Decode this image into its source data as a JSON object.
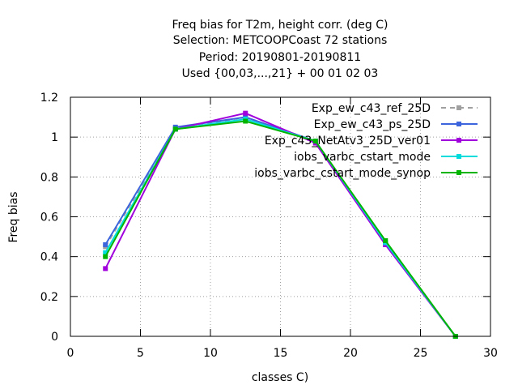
{
  "chart_data": {
    "type": "line",
    "title_lines": [
      "Freq bias  for T2m, height corr. (deg C)",
      "Selection: METCOOPCoast     72 stations",
      "Period: 20190801-20190811",
      "Used {00,03,...,21} + 00 01 02 03"
    ],
    "xlabel": "classes C)",
    "ylabel": "Freq bias",
    "xlim": [
      0,
      30
    ],
    "ylim": [
      0,
      1.2
    ],
    "xticks": [
      0,
      5,
      10,
      15,
      20,
      25,
      30
    ],
    "yticks": [
      0,
      0.2,
      0.4,
      0.6,
      0.8,
      1,
      1.2
    ],
    "xtick_labels": [
      "0",
      "5",
      "10",
      "15",
      "20",
      "25",
      "30"
    ],
    "ytick_labels": [
      "0",
      "0.2",
      "0.4",
      "0.6",
      "0.8",
      "1",
      "1.2"
    ],
    "grid": true,
    "legend_position": "top-right",
    "x": [
      2.5,
      7.5,
      12.5,
      17.5,
      22.5,
      27.5
    ],
    "series": [
      {
        "name": "Exp_ew_c43_ref_25D",
        "color": "#a0a0a0",
        "dashed": true,
        "values": [
          0.45,
          1.04,
          1.1,
          0.98,
          0.47,
          0.0
        ]
      },
      {
        "name": "Exp_ew_c43_ps_25D",
        "color": "#3c64dc",
        "dashed": false,
        "values": [
          0.46,
          1.05,
          1.1,
          0.98,
          0.46,
          0.0
        ]
      },
      {
        "name": "Exp_c43_NetAtv3_25D_ver01",
        "color": "#a000dc",
        "dashed": false,
        "values": [
          0.34,
          1.04,
          1.12,
          0.97,
          0.46,
          0.0
        ]
      },
      {
        "name": "iobs_varbc_cstart_mode",
        "color": "#00dcdc",
        "dashed": false,
        "values": [
          0.42,
          1.04,
          1.09,
          0.98,
          0.47,
          0.0
        ]
      },
      {
        "name": "iobs_varbc_cstart_mode_synop",
        "color": "#00b400",
        "dashed": false,
        "values": [
          0.4,
          1.04,
          1.08,
          0.98,
          0.48,
          0.0
        ]
      }
    ]
  }
}
